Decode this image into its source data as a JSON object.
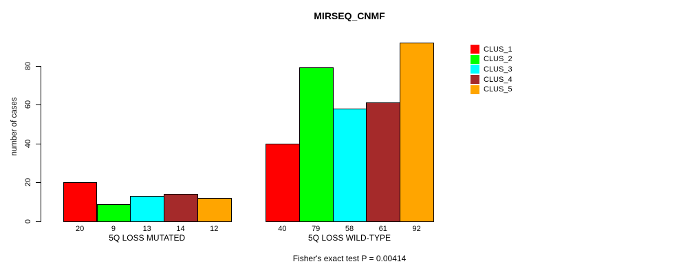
{
  "chart_data": {
    "type": "bar",
    "title": "MIRSEQ_CNMF",
    "ylabel": "number of cases",
    "xlabel": "",
    "categories": [
      "5Q LOSS MUTATED",
      "5Q LOSS WILD-TYPE"
    ],
    "series": [
      {
        "name": "CLUS_1",
        "color": "#FF0000",
        "values": [
          20,
          40
        ]
      },
      {
        "name": "CLUS_2",
        "color": "#00FF00",
        "values": [
          9,
          79
        ]
      },
      {
        "name": "CLUS_3",
        "color": "#00FFFF",
        "values": [
          13,
          58
        ]
      },
      {
        "name": "CLUS_4",
        "color": "#A52A2A",
        "values": [
          14,
          61
        ]
      },
      {
        "name": "CLUS_5",
        "color": "#FFA500",
        "values": [
          12,
          92
        ]
      }
    ],
    "bar_value_labels": true,
    "yticks": [
      0,
      20,
      40,
      60,
      80
    ],
    "ylim": [
      0,
      95
    ],
    "grid": false,
    "legend_position": "right",
    "annotation": "Fisher's exact test P = 0.00414"
  },
  "colors": {
    "background": "#FFFFFF",
    "axis": "#000000",
    "text": "#000000"
  }
}
